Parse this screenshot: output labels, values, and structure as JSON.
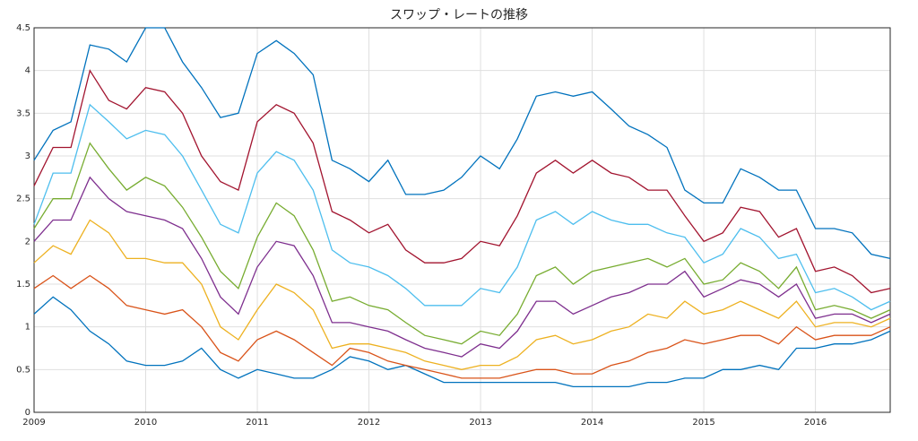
{
  "chart_data": {
    "type": "line",
    "title": "スワップ・レートの推移",
    "x": [
      2009,
      2009.17,
      2009.33,
      2009.5,
      2009.67,
      2009.83,
      2010,
      2010.17,
      2010.33,
      2010.5,
      2010.67,
      2010.83,
      2011,
      2011.17,
      2011.33,
      2011.5,
      2011.67,
      2011.83,
      2012,
      2012.17,
      2012.33,
      2012.5,
      2012.67,
      2012.83,
      2013,
      2013.17,
      2013.33,
      2013.5,
      2013.67,
      2013.83,
      2014,
      2014.17,
      2014.33,
      2014.5,
      2014.67,
      2014.83,
      2015,
      2015.17,
      2015.33,
      2015.5,
      2015.67,
      2015.83,
      2016,
      2016.17,
      2016.33,
      2016.5,
      2016.67
    ],
    "series": [
      {
        "color": "#0072bd",
        "values": [
          1.15,
          1.35,
          1.2,
          0.95,
          0.8,
          0.6,
          0.55,
          0.55,
          0.6,
          0.75,
          0.5,
          0.4,
          0.5,
          0.45,
          0.4,
          0.4,
          0.5,
          0.65,
          0.6,
          0.5,
          0.55,
          0.45,
          0.35,
          0.35,
          0.35,
          0.35,
          0.35,
          0.35,
          0.35,
          0.3,
          0.3,
          0.3,
          0.3,
          0.35,
          0.35,
          0.4,
          0.4,
          0.5,
          0.5,
          0.55,
          0.5,
          0.75,
          0.75,
          0.8,
          0.8,
          0.85,
          0.95
        ]
      },
      {
        "color": "#d95319",
        "values": [
          1.45,
          1.6,
          1.45,
          1.6,
          1.45,
          1.25,
          1.2,
          1.15,
          1.2,
          1.0,
          0.7,
          0.6,
          0.85,
          0.95,
          0.85,
          0.7,
          0.55,
          0.75,
          0.7,
          0.6,
          0.55,
          0.5,
          0.45,
          0.4,
          0.4,
          0.4,
          0.45,
          0.5,
          0.5,
          0.45,
          0.45,
          0.55,
          0.6,
          0.7,
          0.75,
          0.85,
          0.8,
          0.85,
          0.9,
          0.9,
          0.8,
          1.0,
          0.85,
          0.9,
          0.9,
          0.9,
          1.0
        ]
      },
      {
        "color": "#edb120",
        "values": [
          1.75,
          1.95,
          1.85,
          2.25,
          2.1,
          1.8,
          1.8,
          1.75,
          1.75,
          1.5,
          1.0,
          0.85,
          1.2,
          1.5,
          1.4,
          1.2,
          0.75,
          0.8,
          0.8,
          0.75,
          0.7,
          0.6,
          0.55,
          0.5,
          0.55,
          0.55,
          0.65,
          0.85,
          0.9,
          0.8,
          0.85,
          0.95,
          1.0,
          1.15,
          1.1,
          1.3,
          1.15,
          1.2,
          1.3,
          1.2,
          1.1,
          1.3,
          1.0,
          1.05,
          1.05,
          1.0,
          1.1
        ]
      },
      {
        "color": "#7e2f8e",
        "values": [
          2.0,
          2.25,
          2.25,
          2.75,
          2.5,
          2.35,
          2.3,
          2.25,
          2.15,
          1.8,
          1.35,
          1.15,
          1.7,
          2.0,
          1.95,
          1.6,
          1.05,
          1.05,
          1.0,
          0.95,
          0.85,
          0.75,
          0.7,
          0.65,
          0.8,
          0.75,
          0.95,
          1.3,
          1.3,
          1.15,
          1.25,
          1.35,
          1.4,
          1.5,
          1.5,
          1.65,
          1.35,
          1.45,
          1.55,
          1.5,
          1.35,
          1.5,
          1.1,
          1.15,
          1.15,
          1.05,
          1.15
        ]
      },
      {
        "color": "#77ac30",
        "values": [
          2.15,
          2.5,
          2.5,
          3.15,
          2.85,
          2.6,
          2.75,
          2.65,
          2.4,
          2.05,
          1.65,
          1.45,
          2.05,
          2.45,
          2.3,
          1.9,
          1.3,
          1.35,
          1.25,
          1.2,
          1.05,
          0.9,
          0.85,
          0.8,
          0.95,
          0.9,
          1.15,
          1.6,
          1.7,
          1.5,
          1.65,
          1.7,
          1.75,
          1.8,
          1.7,
          1.8,
          1.5,
          1.55,
          1.75,
          1.65,
          1.45,
          1.7,
          1.2,
          1.25,
          1.2,
          1.1,
          1.2
        ]
      },
      {
        "color": "#4dbeee",
        "values": [
          2.2,
          2.8,
          2.8,
          3.6,
          3.4,
          3.2,
          3.3,
          3.25,
          3.0,
          2.6,
          2.2,
          2.1,
          2.8,
          3.05,
          2.95,
          2.6,
          1.9,
          1.75,
          1.7,
          1.6,
          1.45,
          1.25,
          1.25,
          1.25,
          1.45,
          1.4,
          1.7,
          2.25,
          2.35,
          2.2,
          2.35,
          2.25,
          2.2,
          2.2,
          2.1,
          2.05,
          1.75,
          1.85,
          2.15,
          2.05,
          1.8,
          1.85,
          1.4,
          1.45,
          1.35,
          1.2,
          1.3
        ]
      },
      {
        "color": "#a2142f",
        "values": [
          2.65,
          3.1,
          3.1,
          4.0,
          3.65,
          3.55,
          3.8,
          3.75,
          3.5,
          3.0,
          2.7,
          2.6,
          3.4,
          3.6,
          3.5,
          3.15,
          2.35,
          2.25,
          2.1,
          2.2,
          1.9,
          1.75,
          1.75,
          1.8,
          2.0,
          1.95,
          2.3,
          2.8,
          2.95,
          2.8,
          2.95,
          2.8,
          2.75,
          2.6,
          2.6,
          2.3,
          2.0,
          2.1,
          2.4,
          2.35,
          2.05,
          2.15,
          1.65,
          1.7,
          1.6,
          1.4,
          1.45
        ]
      },
      {
        "color": "#0072bd",
        "values": [
          2.95,
          3.3,
          3.4,
          4.3,
          4.25,
          4.1,
          4.5,
          4.5,
          4.1,
          3.8,
          3.45,
          3.5,
          4.2,
          4.35,
          4.2,
          3.95,
          2.95,
          2.85,
          2.7,
          2.95,
          2.55,
          2.55,
          2.6,
          2.75,
          3.0,
          2.85,
          3.2,
          3.7,
          3.75,
          3.7,
          3.75,
          3.55,
          3.35,
          3.25,
          3.1,
          2.6,
          2.45,
          2.45,
          2.85,
          2.75,
          2.6,
          2.6,
          2.15,
          2.15,
          2.1,
          1.85,
          1.8
        ]
      }
    ],
    "xlim": [
      2009,
      2016.67
    ],
    "xticks": [
      2009,
      2010,
      2011,
      2012,
      2013,
      2014,
      2015,
      2016
    ],
    "ylim": [
      0,
      4.5
    ],
    "yticks": [
      0,
      0.5,
      1,
      1.5,
      2,
      2.5,
      3,
      3.5,
      4,
      4.5
    ],
    "grid": true
  }
}
